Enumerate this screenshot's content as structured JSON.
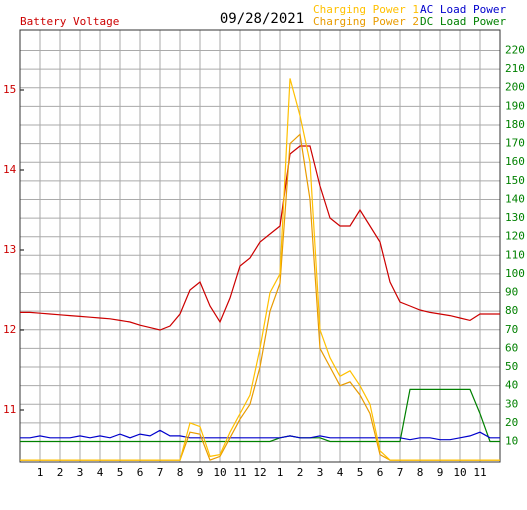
{
  "chart_data": {
    "type": "line",
    "date": "09/28/2021",
    "x": [
      0,
      0.5,
      1,
      1.5,
      2,
      2.5,
      3,
      3.5,
      4,
      4.5,
      5,
      5.5,
      6,
      6.5,
      7,
      7.5,
      8,
      8.5,
      9,
      9.5,
      10,
      10.5,
      11,
      11.5,
      12,
      12.5,
      13,
      13.5,
      14,
      14.5,
      15,
      15.5,
      16,
      16.5,
      17,
      17.5,
      18,
      18.5,
      19,
      19.5,
      20,
      20.5,
      21,
      21.5,
      22,
      22.5,
      23,
      23.5,
      24
    ],
    "xlim": [
      0,
      24
    ],
    "xticks": [
      1,
      2,
      3,
      4,
      5,
      6,
      7,
      8,
      9,
      10,
      11,
      12,
      {
        "value": 13,
        "label": "1"
      },
      {
        "value": 14,
        "label": "2"
      },
      {
        "value": 15,
        "label": "3"
      },
      {
        "value": 16,
        "label": "4"
      },
      {
        "value": 17,
        "label": "5"
      },
      {
        "value": 18,
        "label": "6"
      },
      {
        "value": 19,
        "label": "7"
      },
      {
        "value": 20,
        "label": "8"
      },
      {
        "value": 21,
        "label": "9"
      },
      {
        "value": 22,
        "label": "10"
      },
      {
        "value": 23,
        "label": "11"
      }
    ],
    "ylim": [
      10.35,
      15.75
    ],
    "yticks": [
      11,
      12,
      13,
      14,
      15
    ],
    "y2lim": [
      -1,
      231
    ],
    "y2ticks": [
      10,
      20,
      30,
      40,
      50,
      60,
      70,
      80,
      90,
      100,
      110,
      120,
      130,
      140,
      150,
      160,
      170,
      180,
      190,
      200,
      210,
      220
    ],
    "grid": true,
    "series": [
      {
        "name": "Battery Voltage",
        "color": "#cc0000",
        "axis": "y",
        "values": [
          12.22,
          12.22,
          12.21,
          12.2,
          12.19,
          12.18,
          12.17,
          12.16,
          12.15,
          12.14,
          12.12,
          12.1,
          12.06,
          12.03,
          12.0,
          12.05,
          12.2,
          12.5,
          12.6,
          12.3,
          12.1,
          12.4,
          12.8,
          12.9,
          13.1,
          13.2,
          13.3,
          14.2,
          14.3,
          14.3,
          13.8,
          13.4,
          13.3,
          13.3,
          13.5,
          13.3,
          13.1,
          12.6,
          12.35,
          12.3,
          12.25,
          12.22,
          12.2,
          12.18,
          12.15,
          12.12,
          12.2,
          12.2,
          12.2
        ]
      },
      {
        "name": "Charging Power 1",
        "color": "#ffc000",
        "axis": "y2",
        "values": [
          0,
          0,
          0,
          0,
          0,
          0,
          0,
          0,
          0,
          0,
          0,
          0,
          0,
          0,
          0,
          0,
          0,
          20,
          18,
          2,
          3,
          15,
          25,
          35,
          60,
          90,
          100,
          205,
          185,
          160,
          70,
          55,
          45,
          48,
          40,
          30,
          5,
          0,
          0,
          0,
          0,
          0,
          0,
          0,
          0,
          0,
          0,
          0,
          0
        ]
      },
      {
        "name": "Charging Power 2",
        "color": "#e89b00",
        "axis": "y2",
        "values": [
          0,
          0,
          0,
          0,
          0,
          0,
          0,
          0,
          0,
          0,
          0,
          0,
          0,
          0,
          0,
          0,
          0,
          15,
          14,
          0,
          2,
          12,
          22,
          30,
          50,
          80,
          95,
          170,
          175,
          140,
          60,
          50,
          40,
          42,
          35,
          25,
          3,
          0,
          0,
          0,
          0,
          0,
          0,
          0,
          0,
          0,
          0,
          0,
          0
        ]
      },
      {
        "name": "AC Load Power",
        "color": "#0000cc",
        "axis": "y2",
        "values": [
          12,
          12,
          13,
          12,
          12,
          12,
          13,
          12,
          13,
          12,
          14,
          12,
          14,
          13,
          16,
          13,
          13,
          12,
          12,
          12,
          12,
          12,
          12,
          12,
          12,
          12,
          12,
          13,
          12,
          12,
          13,
          12,
          12,
          12,
          12,
          12,
          12,
          12,
          12,
          11,
          12,
          12,
          11,
          11,
          12,
          13,
          15,
          12,
          12
        ]
      },
      {
        "name": "DC Load Power",
        "color": "#008000",
        "axis": "y2",
        "values": [
          10,
          10,
          10,
          10,
          10,
          10,
          10,
          10,
          10,
          10,
          10,
          10,
          10,
          10,
          10,
          10,
          10,
          10,
          10,
          10,
          10,
          10,
          10,
          10,
          10,
          10,
          12,
          13,
          12,
          12,
          12,
          10,
          10,
          10,
          10,
          10,
          10,
          10,
          10,
          38,
          38,
          38,
          38,
          38,
          38,
          38,
          25,
          10,
          10
        ]
      }
    ]
  }
}
